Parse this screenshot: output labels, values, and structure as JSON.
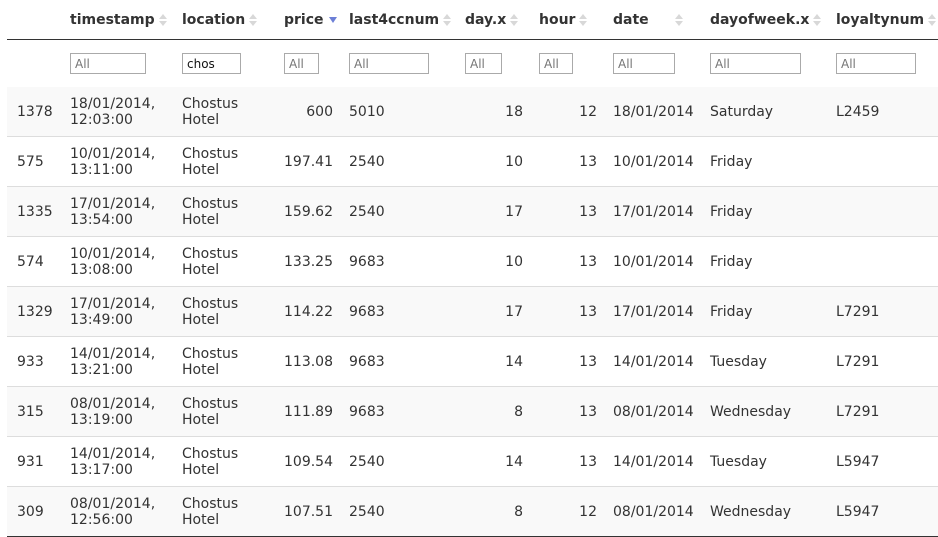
{
  "columns": [
    {
      "key": "rownum",
      "label": "",
      "filter": false
    },
    {
      "key": "timestamp",
      "label": "timestamp",
      "sort": "none",
      "filter": true,
      "filter_placeholder": "All",
      "filter_value": ""
    },
    {
      "key": "location",
      "label": "location",
      "sort": "none",
      "filter": true,
      "filter_placeholder": "All",
      "filter_value": "chos"
    },
    {
      "key": "price",
      "label": "price",
      "sort": "desc",
      "filter": true,
      "filter_placeholder": "All",
      "filter_value": ""
    },
    {
      "key": "last4ccnum",
      "label": "last4ccnum",
      "sort": "none",
      "filter": true,
      "filter_placeholder": "All",
      "filter_value": ""
    },
    {
      "key": "day_x",
      "label": "day.x",
      "sort": "none",
      "filter": true,
      "filter_placeholder": "All",
      "filter_value": ""
    },
    {
      "key": "hour",
      "label": "hour",
      "sort": "none",
      "filter": true,
      "filter_placeholder": "All",
      "filter_value": ""
    },
    {
      "key": "date",
      "label": "date",
      "sort": "none",
      "filter": true,
      "filter_placeholder": "All",
      "filter_value": ""
    },
    {
      "key": "dayofweek_x",
      "label": "dayofweek.x",
      "sort": "none",
      "filter": true,
      "filter_placeholder": "All",
      "filter_value": ""
    },
    {
      "key": "loyaltynum",
      "label": "loyaltynum",
      "sort": "none",
      "filter": true,
      "filter_placeholder": "All",
      "filter_value": ""
    }
  ],
  "rows": [
    {
      "rownum": "1378",
      "timestamp_l1": "18/01/2014,",
      "timestamp_l2": "12:03:00",
      "location_l1": "Chostus",
      "location_l2": "Hotel",
      "price": "600",
      "last4ccnum": "5010",
      "day_x": "18",
      "hour": "12",
      "date": "18/01/2014",
      "dayofweek_x": "Saturday",
      "loyaltynum": "L2459"
    },
    {
      "rownum": "575",
      "timestamp_l1": "10/01/2014,",
      "timestamp_l2": "13:11:00",
      "location_l1": "Chostus",
      "location_l2": "Hotel",
      "price": "197.41",
      "last4ccnum": "2540",
      "day_x": "10",
      "hour": "13",
      "date": "10/01/2014",
      "dayofweek_x": "Friday",
      "loyaltynum": ""
    },
    {
      "rownum": "1335",
      "timestamp_l1": "17/01/2014,",
      "timestamp_l2": "13:54:00",
      "location_l1": "Chostus",
      "location_l2": "Hotel",
      "price": "159.62",
      "last4ccnum": "2540",
      "day_x": "17",
      "hour": "13",
      "date": "17/01/2014",
      "dayofweek_x": "Friday",
      "loyaltynum": ""
    },
    {
      "rownum": "574",
      "timestamp_l1": "10/01/2014,",
      "timestamp_l2": "13:08:00",
      "location_l1": "Chostus",
      "location_l2": "Hotel",
      "price": "133.25",
      "last4ccnum": "9683",
      "day_x": "10",
      "hour": "13",
      "date": "10/01/2014",
      "dayofweek_x": "Friday",
      "loyaltynum": ""
    },
    {
      "rownum": "1329",
      "timestamp_l1": "17/01/2014,",
      "timestamp_l2": "13:49:00",
      "location_l1": "Chostus",
      "location_l2": "Hotel",
      "price": "114.22",
      "last4ccnum": "9683",
      "day_x": "17",
      "hour": "13",
      "date": "17/01/2014",
      "dayofweek_x": "Friday",
      "loyaltynum": "L7291"
    },
    {
      "rownum": "933",
      "timestamp_l1": "14/01/2014,",
      "timestamp_l2": "13:21:00",
      "location_l1": "Chostus",
      "location_l2": "Hotel",
      "price": "113.08",
      "last4ccnum": "9683",
      "day_x": "14",
      "hour": "13",
      "date": "14/01/2014",
      "dayofweek_x": "Tuesday",
      "loyaltynum": "L7291"
    },
    {
      "rownum": "315",
      "timestamp_l1": "08/01/2014,",
      "timestamp_l2": "13:19:00",
      "location_l1": "Chostus",
      "location_l2": "Hotel",
      "price": "111.89",
      "last4ccnum": "9683",
      "day_x": "8",
      "hour": "13",
      "date": "08/01/2014",
      "dayofweek_x": "Wednesday",
      "loyaltynum": "L7291"
    },
    {
      "rownum": "931",
      "timestamp_l1": "14/01/2014,",
      "timestamp_l2": "13:17:00",
      "location_l1": "Chostus",
      "location_l2": "Hotel",
      "price": "109.54",
      "last4ccnum": "2540",
      "day_x": "14",
      "hour": "13",
      "date": "14/01/2014",
      "dayofweek_x": "Tuesday",
      "loyaltynum": "L5947"
    },
    {
      "rownum": "309",
      "timestamp_l1": "08/01/2014,",
      "timestamp_l2": "12:56:00",
      "location_l1": "Chostus",
      "location_l2": "Hotel",
      "price": "107.51",
      "last4ccnum": "2540",
      "day_x": "8",
      "hour": "12",
      "date": "08/01/2014",
      "dayofweek_x": "Wednesday",
      "loyaltynum": "L5947"
    }
  ],
  "icons": {
    "sort_both": "sort-both-icon",
    "sort_desc": "sort-desc-icon"
  },
  "colors": {
    "sort_active": "#6c7fd6",
    "row_stripe": "#f9f9f9",
    "border": "#333333"
  }
}
